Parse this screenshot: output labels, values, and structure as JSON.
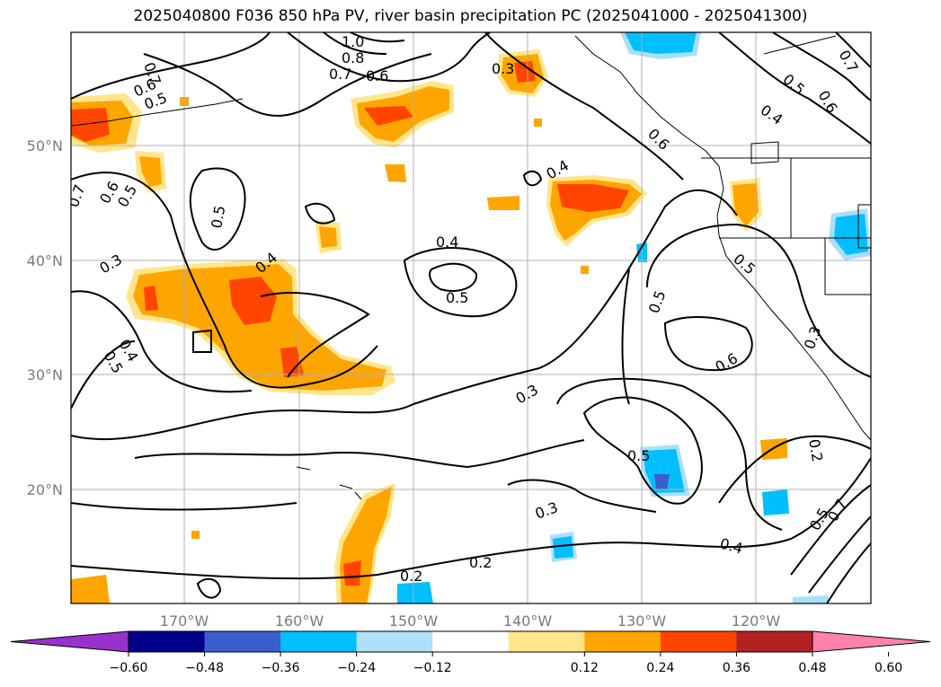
{
  "title": "2025040800 F036 850 hPa PV, river basin precipitation PC (2025041000 - 2025041300)",
  "map": {
    "lon_labels": [
      "170°W",
      "160°W",
      "150°W",
      "140°W",
      "130°W",
      "120°W"
    ],
    "lat_labels": [
      "50°N",
      "40°N",
      "30°N",
      "20°N"
    ],
    "contour_labels": [
      "0.7",
      "1.0",
      "0.8",
      "0.7",
      "0.6",
      "0.6",
      "0.5",
      "0.7",
      "0.6",
      "0.5",
      "0.3",
      "0.5",
      "0.6",
      "0.4",
      "0.4",
      "0.6",
      "0.5",
      "0.7",
      "0.4",
      "0.5",
      "0.3",
      "0.4",
      "0.5",
      "0.4",
      "0.5",
      "0.5",
      "0.6",
      "0.3",
      "0.3",
      "0.5",
      "0.3",
      "0.2",
      "0.4",
      "0.2",
      "0.2",
      "0.5",
      "0.7"
    ],
    "colors": {
      "strong_positive": "#ff4500",
      "positive": "#ffa500",
      "weak_positive": "#ffe68c",
      "deep_positive": "#e0282a",
      "negative": "#00bfff",
      "strong_negative": "#3a5fcd",
      "weak_negative": "#aadff8",
      "gridline": "#b0b0b0",
      "contour": "#000000"
    }
  },
  "colorbar": {
    "ticks": [
      "−0.60",
      "−0.48",
      "−0.36",
      "−0.24",
      "−0.12",
      "0.12",
      "0.24",
      "0.36",
      "0.48",
      "0.60"
    ],
    "colors": [
      "#9932cc",
      "#00008b",
      "#3a5fcd",
      "#00bfff",
      "#afe0fa",
      "#ffffff",
      "#ffe68c",
      "#ffa500",
      "#ff4500",
      "#b22222",
      "#ff82ab"
    ]
  }
}
